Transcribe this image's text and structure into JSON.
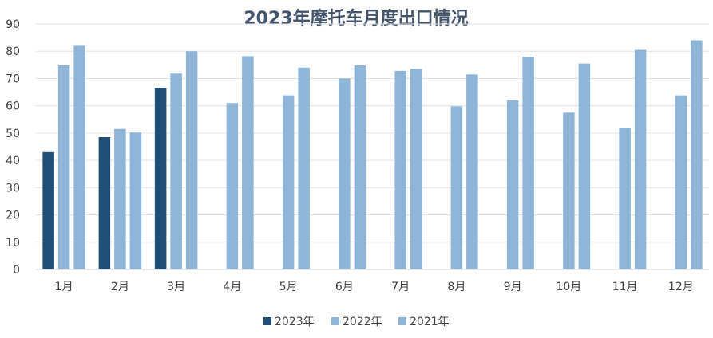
{
  "chart_data": {
    "type": "bar",
    "title": "2023年摩托车月度出口情况",
    "xlabel": "",
    "ylabel": "",
    "ylim": [
      0,
      90
    ],
    "yticks": [
      0,
      10,
      20,
      30,
      40,
      50,
      60,
      70,
      80,
      90
    ],
    "grid": true,
    "legend_position": "bottom",
    "categories": [
      "1月",
      "2月",
      "3月",
      "4月",
      "5月",
      "6月",
      "7月",
      "8月",
      "9月",
      "10月",
      "11月",
      "12月"
    ],
    "series": [
      {
        "name": "2023年",
        "color": "#1f4e79",
        "values": [
          43,
          48.5,
          66.5,
          null,
          null,
          null,
          null,
          null,
          null,
          null,
          null,
          null
        ]
      },
      {
        "name": "2022年",
        "color": "#8eb4d8",
        "values": [
          74.8,
          51.5,
          71.8,
          61,
          63.8,
          70,
          72.8,
          59.8,
          62,
          57.5,
          52,
          63.8
        ]
      },
      {
        "name": "2021年",
        "color": "#8eb4d8",
        "values": [
          82,
          50.2,
          80,
          78.2,
          74,
          74.8,
          73.5,
          71.5,
          78,
          75.5,
          80.5,
          84
        ]
      }
    ]
  }
}
